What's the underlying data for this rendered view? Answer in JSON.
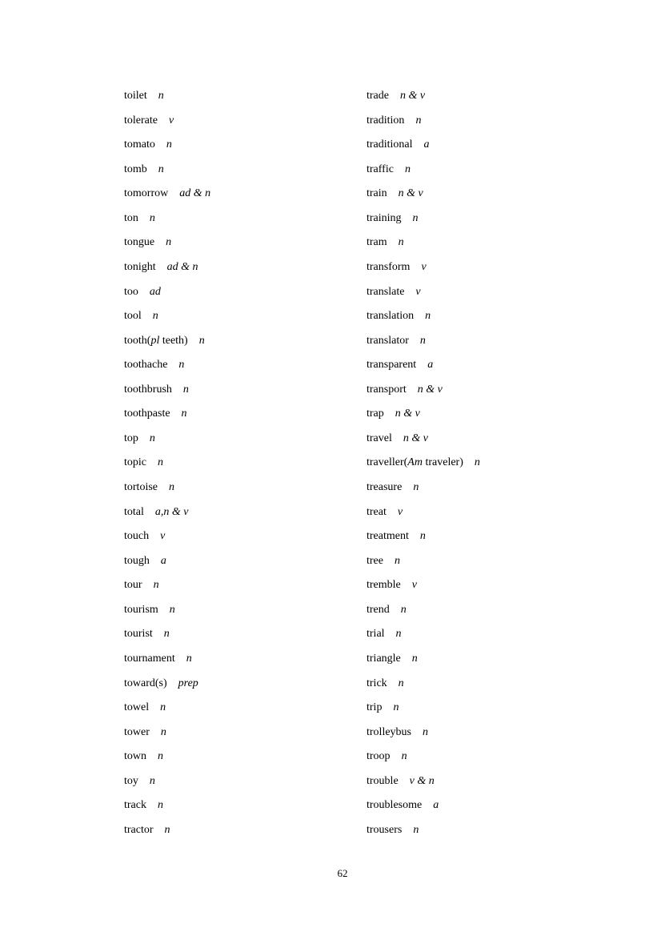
{
  "columns": [
    [
      {
        "head": [
          {
            "t": "toilet"
          }
        ],
        "pos": "n"
      },
      {
        "head": [
          {
            "t": "tolerate"
          }
        ],
        "pos": "v"
      },
      {
        "head": [
          {
            "t": "tomato"
          }
        ],
        "pos": "n"
      },
      {
        "head": [
          {
            "t": "tomb"
          }
        ],
        "pos": "n"
      },
      {
        "head": [
          {
            "t": "tomorrow"
          }
        ],
        "pos": "ad & n"
      },
      {
        "head": [
          {
            "t": "ton"
          }
        ],
        "pos": "n"
      },
      {
        "head": [
          {
            "t": "tongue"
          }
        ],
        "pos": "n"
      },
      {
        "head": [
          {
            "t": "tonight"
          }
        ],
        "pos": "ad & n"
      },
      {
        "head": [
          {
            "t": "too"
          }
        ],
        "pos": "ad"
      },
      {
        "head": [
          {
            "t": "tool"
          }
        ],
        "pos": "n"
      },
      {
        "head": [
          {
            "t": "tooth("
          },
          {
            "t": "pl",
            "i": true
          },
          {
            "t": " teeth)"
          }
        ],
        "pos": "n"
      },
      {
        "head": [
          {
            "t": "toothache"
          }
        ],
        "pos": "n"
      },
      {
        "head": [
          {
            "t": "toothbrush"
          }
        ],
        "pos": "n"
      },
      {
        "head": [
          {
            "t": "toothpaste"
          }
        ],
        "pos": "n"
      },
      {
        "head": [
          {
            "t": "top"
          }
        ],
        "pos": "n"
      },
      {
        "head": [
          {
            "t": "topic"
          }
        ],
        "pos": "n"
      },
      {
        "head": [
          {
            "t": "tortoise"
          }
        ],
        "pos": "n"
      },
      {
        "head": [
          {
            "t": "total"
          }
        ],
        "pos": "a,n & v"
      },
      {
        "head": [
          {
            "t": "touch"
          }
        ],
        "pos": "v"
      },
      {
        "head": [
          {
            "t": "tough"
          }
        ],
        "pos": "a"
      },
      {
        "head": [
          {
            "t": "tour"
          }
        ],
        "pos": "n"
      },
      {
        "head": [
          {
            "t": "tourism"
          }
        ],
        "pos": "n"
      },
      {
        "head": [
          {
            "t": "tourist"
          }
        ],
        "pos": "n"
      },
      {
        "head": [
          {
            "t": "tournament"
          }
        ],
        "pos": "n"
      },
      {
        "head": [
          {
            "t": "toward(s)"
          }
        ],
        "pos": "prep"
      },
      {
        "head": [
          {
            "t": "towel"
          }
        ],
        "pos": "n"
      },
      {
        "head": [
          {
            "t": "tower"
          }
        ],
        "pos": "n"
      },
      {
        "head": [
          {
            "t": "town"
          }
        ],
        "pos": "n"
      },
      {
        "head": [
          {
            "t": "toy"
          }
        ],
        "pos": "n"
      },
      {
        "head": [
          {
            "t": "track"
          }
        ],
        "pos": "n"
      },
      {
        "head": [
          {
            "t": "tractor"
          }
        ],
        "pos": "n"
      }
    ],
    [
      {
        "head": [
          {
            "t": "trade"
          }
        ],
        "pos": "n & v"
      },
      {
        "head": [
          {
            "t": "tradition"
          }
        ],
        "pos": "n"
      },
      {
        "head": [
          {
            "t": "traditional"
          }
        ],
        "pos": "a"
      },
      {
        "head": [
          {
            "t": "traffic"
          }
        ],
        "pos": "n"
      },
      {
        "head": [
          {
            "t": "train"
          }
        ],
        "pos": "n & v"
      },
      {
        "head": [
          {
            "t": "training"
          }
        ],
        "pos": "n"
      },
      {
        "head": [
          {
            "t": "tram"
          }
        ],
        "pos": "n"
      },
      {
        "head": [
          {
            "t": "transform"
          }
        ],
        "pos": "v"
      },
      {
        "head": [
          {
            "t": "translate"
          }
        ],
        "pos": "v"
      },
      {
        "head": [
          {
            "t": "translation"
          }
        ],
        "pos": "n"
      },
      {
        "head": [
          {
            "t": "translator"
          }
        ],
        "pos": "n"
      },
      {
        "head": [
          {
            "t": "transparent"
          }
        ],
        "pos": "a"
      },
      {
        "head": [
          {
            "t": "transport"
          }
        ],
        "pos": "n & v"
      },
      {
        "head": [
          {
            "t": "trap"
          }
        ],
        "pos": "n & v"
      },
      {
        "head": [
          {
            "t": "travel"
          }
        ],
        "pos": "n & v"
      },
      {
        "head": [
          {
            "t": "traveller("
          },
          {
            "t": "Am",
            "i": true
          },
          {
            "t": " traveler)"
          }
        ],
        "pos": "n"
      },
      {
        "head": [
          {
            "t": "treasure"
          }
        ],
        "pos": "n"
      },
      {
        "head": [
          {
            "t": "treat"
          }
        ],
        "pos": "v"
      },
      {
        "head": [
          {
            "t": "treatment"
          }
        ],
        "pos": "n"
      },
      {
        "head": [
          {
            "t": "tree"
          }
        ],
        "pos": "n"
      },
      {
        "head": [
          {
            "t": "tremble"
          }
        ],
        "pos": "v"
      },
      {
        "head": [
          {
            "t": "trend"
          }
        ],
        "pos": "n"
      },
      {
        "head": [
          {
            "t": "trial"
          }
        ],
        "pos": "n"
      },
      {
        "head": [
          {
            "t": "triangle"
          }
        ],
        "pos": "n"
      },
      {
        "head": [
          {
            "t": "trick"
          }
        ],
        "pos": "n"
      },
      {
        "head": [
          {
            "t": "trip"
          }
        ],
        "pos": "n"
      },
      {
        "head": [
          {
            "t": "trolleybus"
          }
        ],
        "pos": "n"
      },
      {
        "head": [
          {
            "t": "troop"
          }
        ],
        "pos": "n"
      },
      {
        "head": [
          {
            "t": "trouble"
          }
        ],
        "pos": "v & n"
      },
      {
        "head": [
          {
            "t": "troublesome"
          }
        ],
        "pos": "a"
      },
      {
        "head": [
          {
            "t": "trousers"
          }
        ],
        "pos": "n"
      }
    ]
  ],
  "page_number": "62"
}
